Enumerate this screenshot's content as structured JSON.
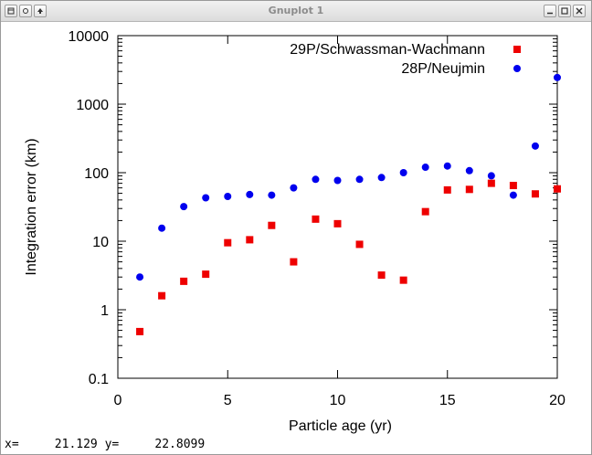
{
  "window": {
    "title": "Gnuplot 1",
    "left_buttons": [
      "menu-icon",
      "pin-icon",
      "up-arrow-icon"
    ],
    "right_buttons": [
      "minimize-icon",
      "maximize-icon",
      "close-icon"
    ]
  },
  "status": {
    "x_label": "x=",
    "x_value": "21.129",
    "y_label": "y=",
    "y_value": "22.8099"
  },
  "chart_data": {
    "type": "scatter",
    "xlabel": "Particle age (yr)",
    "ylabel": "Integration error (km)",
    "xlim": [
      0,
      20
    ],
    "ylim": [
      0.1,
      10000
    ],
    "y_scale": "log",
    "x_ticks": [
      "0",
      "5",
      "10",
      "15",
      "20"
    ],
    "y_ticks": [
      "0.1",
      "1",
      "10",
      "100",
      "1000",
      "10000"
    ],
    "legend_position": "top-right",
    "series": [
      {
        "name": "29P/Schwassman-Wachmann",
        "marker": "square",
        "color": "#ee0000",
        "x": [
          1,
          2,
          3,
          4,
          5,
          6,
          7,
          8,
          9,
          10,
          11,
          12,
          13,
          14,
          15,
          16,
          17,
          18,
          19,
          20
        ],
        "y": [
          0.48,
          1.6,
          2.6,
          3.3,
          9.5,
          10.5,
          17,
          5,
          21,
          18,
          9,
          3.2,
          2.7,
          27,
          56,
          57,
          70,
          65,
          49,
          58
        ]
      },
      {
        "name": "28P/Neujmin",
        "marker": "circle",
        "color": "#0000ee",
        "x": [
          1,
          2,
          3,
          4,
          5,
          6,
          7,
          8,
          9,
          10,
          11,
          12,
          13,
          14,
          15,
          16,
          17,
          18,
          19,
          20
        ],
        "y": [
          3,
          15.5,
          32,
          43,
          45,
          48,
          47,
          60,
          80,
          77,
          80,
          85,
          100,
          120,
          125,
          107,
          90,
          47,
          245,
          2450
        ]
      }
    ]
  }
}
